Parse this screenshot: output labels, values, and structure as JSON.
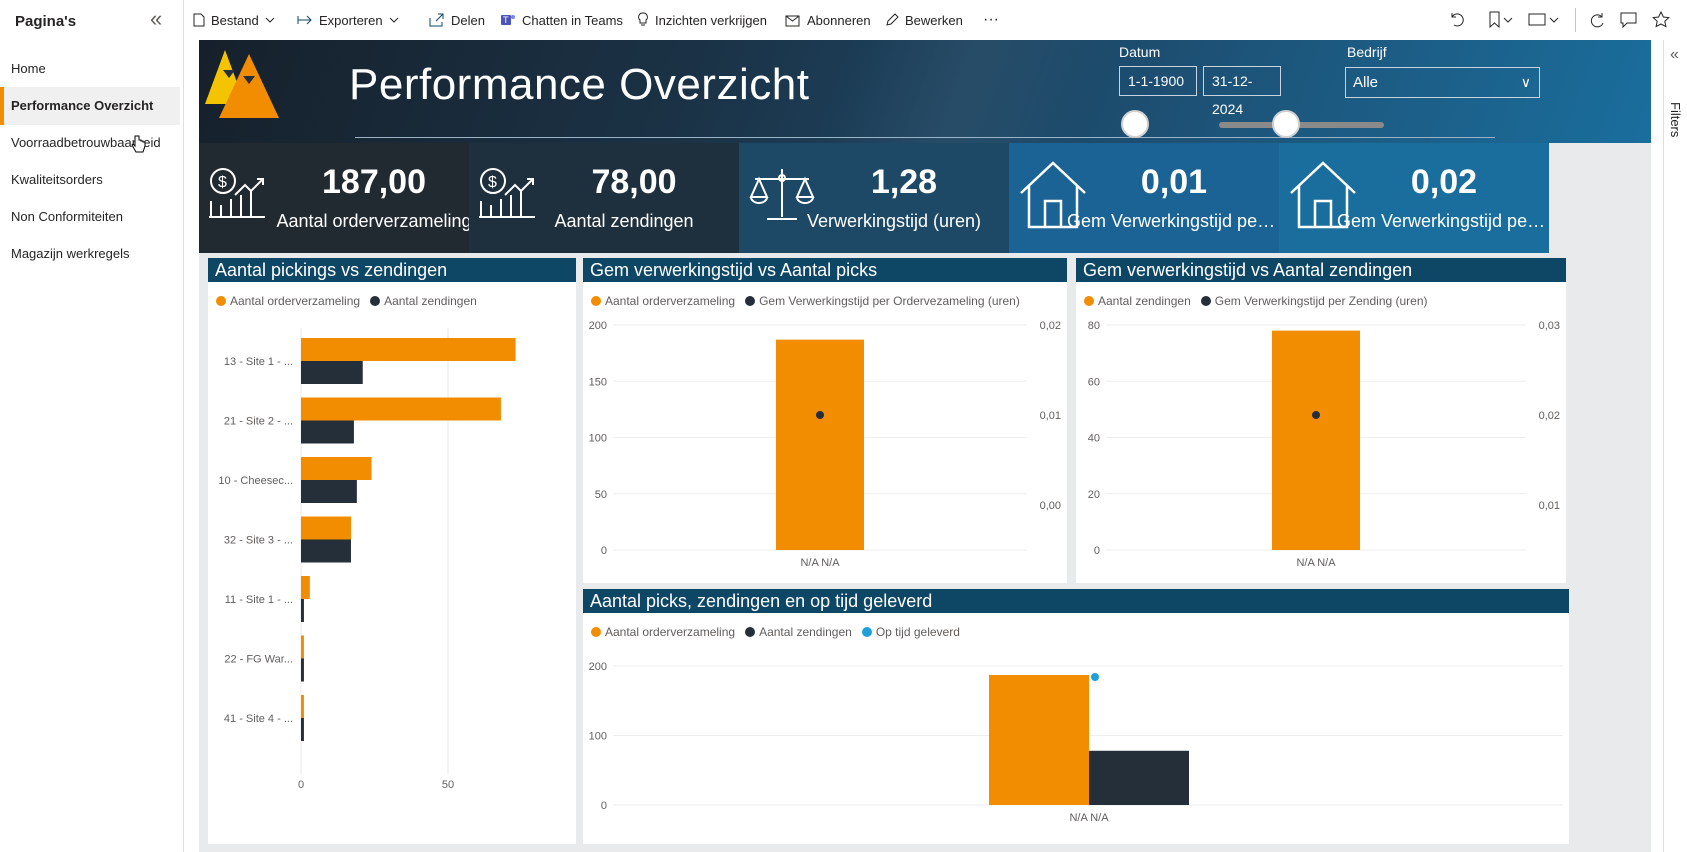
{
  "pages_pane": {
    "title": "Pagina's",
    "items": [
      {
        "label": "Home"
      },
      {
        "label": "Performance Overzicht"
      },
      {
        "label": "Voorraadbetrouwbaarheid"
      },
      {
        "label": "Kwaliteitsorders"
      },
      {
        "label": "Non Conformiteiten"
      },
      {
        "label": "Magazijn werkregels"
      }
    ]
  },
  "toolbar": {
    "file": "Bestand",
    "export": "Exporteren",
    "share": "Delen",
    "teams": "Chatten in Teams",
    "insights": "Inzichten verkrijgen",
    "subscribe": "Abonneren",
    "edit": "Bewerken",
    "more": "···"
  },
  "report": {
    "title": "Performance Overzicht",
    "date_label": "Datum",
    "date_from": "1-1-1900",
    "date_to": "31-12-2024",
    "company_label": "Bedrijf",
    "company_value": "Alle"
  },
  "kpis": [
    {
      "value": "187,00",
      "caption": "Aantal orderverzameling",
      "icon": "money-growth-icon"
    },
    {
      "value": "78,00",
      "caption": "Aantal zendingen",
      "icon": "money-growth-icon"
    },
    {
      "value": "1,28",
      "caption": "Verwerkingstijd (uren)",
      "icon": "scale-icon"
    },
    {
      "value": "0,01",
      "caption": "Gem Verwerkingstijd per ...",
      "icon": "house-icon"
    },
    {
      "value": "0,02",
      "caption": "Gem Verwerkingstijd per ...",
      "icon": "house-icon"
    }
  ],
  "colors": {
    "orange": "#f28c00",
    "dark": "#252f3a",
    "blue": "#1fa0dc",
    "header": "#0e4766"
  },
  "panels": {
    "p1": {
      "title": "Aantal pickings vs zendingen",
      "legend": [
        "Aantal orderverzameling",
        "Aantal zendingen"
      ]
    },
    "p2": {
      "title": "Gem verwerkingstijd vs Aantal picks",
      "legend": [
        "Aantal orderverzameling",
        "Gem Verwerkingstijd per Ordervezameling (uren)"
      ]
    },
    "p3": {
      "title": "Gem verwerkingstijd vs Aantal zendingen",
      "legend": [
        "Aantal zendingen",
        "Gem Verwerkingstijd per Zending (uren)"
      ]
    },
    "p4": {
      "title": "Aantal picks, zendingen en op tijd geleverd",
      "legend": [
        "Aantal orderverzameling",
        "Aantal zendingen",
        "Op tijd geleverd"
      ]
    }
  },
  "filters_label": "Filters",
  "chart_data": [
    {
      "type": "bar",
      "orientation": "horizontal",
      "title": "Aantal pickings vs zendingen",
      "categories": [
        "13 - Site 1 - ...",
        "21 - Site 2 - ...",
        "10 - Cheesec...",
        "32 - Site 3 - ...",
        "11 - Site 1 - ...",
        "22 - FG War...",
        "41 - Site 4 - ..."
      ],
      "series": [
        {
          "name": "Aantal orderverzameling",
          "values": [
            73,
            68,
            24,
            17,
            3,
            1,
            1
          ]
        },
        {
          "name": "Aantal zendingen",
          "values": [
            21,
            18,
            19,
            17,
            1,
            1,
            1
          ]
        }
      ],
      "xticks": [
        "0",
        "50"
      ],
      "xlim": [
        0,
        83
      ]
    },
    {
      "type": "bar",
      "title": "Gem verwerkingstijd vs Aantal picks",
      "categories": [
        "N/A N/A"
      ],
      "series": [
        {
          "name": "Aantal orderverzameling",
          "values": [
            187
          ]
        },
        {
          "name": "Gem Verwerkingstijd per Ordervezameling (uren)",
          "values": [
            0.01
          ],
          "axis": "right"
        }
      ],
      "yticks": [
        "0",
        "50",
        "100",
        "150",
        "200"
      ],
      "ylim": [
        0,
        200
      ],
      "y2ticks": [
        "0,00",
        "0,01",
        "0,02"
      ],
      "y2lim": [
        -0.005,
        0.02
      ]
    },
    {
      "type": "bar",
      "title": "Gem verwerkingstijd vs Aantal zendingen",
      "categories": [
        "N/A N/A"
      ],
      "series": [
        {
          "name": "Aantal zendingen",
          "values": [
            78
          ]
        },
        {
          "name": "Gem Verwerkingstijd per Zending (uren)",
          "values": [
            0.02
          ],
          "axis": "right"
        }
      ],
      "yticks": [
        "0",
        "20",
        "40",
        "60",
        "80"
      ],
      "ylim": [
        0,
        80
      ],
      "y2ticks": [
        "0,01",
        "0,02",
        "0,03"
      ],
      "y2lim": [
        0.005,
        0.03
      ]
    },
    {
      "type": "bar",
      "title": "Aantal picks, zendingen en op tijd geleverd",
      "categories": [
        "N/A N/A"
      ],
      "series": [
        {
          "name": "Aantal orderverzameling",
          "values": [
            187
          ]
        },
        {
          "name": "Aantal zendingen",
          "values": [
            78
          ]
        },
        {
          "name": "Op tijd geleverd",
          "values": [
            187
          ]
        }
      ],
      "yticks": [
        "0",
        "100",
        "200"
      ],
      "ylim": [
        0,
        210
      ]
    }
  ]
}
